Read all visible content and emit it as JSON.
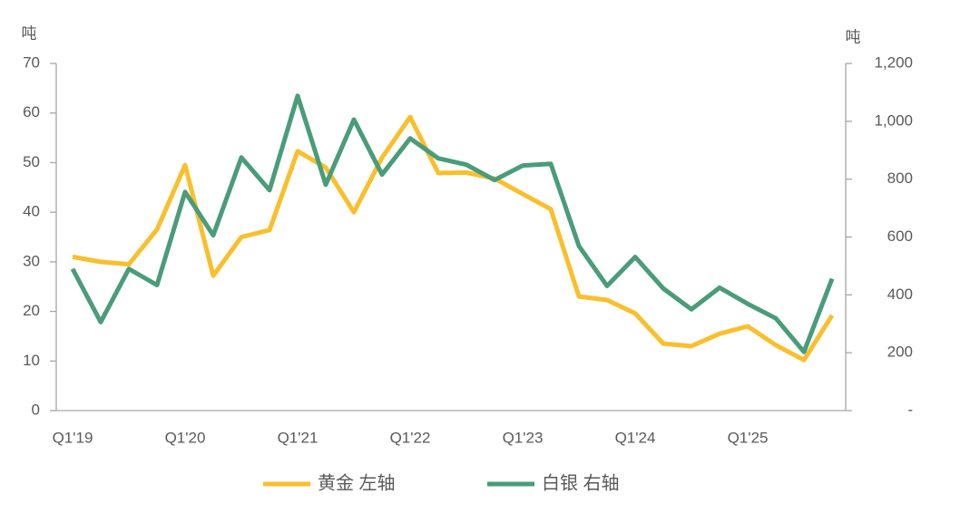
{
  "chart_data": {
    "type": "line",
    "y_label": "吨",
    "y2_label": "吨",
    "categories": [
      "Q1'19",
      null,
      null,
      null,
      "Q1'20",
      null,
      null,
      null,
      "Q1'21",
      null,
      null,
      null,
      "Q1'22",
      null,
      null,
      null,
      "Q1'23",
      null,
      null,
      null,
      "Q1'24",
      null,
      null,
      null,
      "Q1'25",
      null,
      null,
      null
    ],
    "series": [
      {
        "name": "黄金 左轴",
        "color": "#f9bf2c",
        "values": [
          31,
          30,
          29.5,
          36.5,
          49.5,
          27.2,
          35,
          36.4,
          52.3,
          49,
          40,
          51,
          59.2,
          47.9,
          48,
          46.8,
          43.7,
          40.6,
          23,
          22.3,
          19.6,
          13.5,
          13,
          15.5,
          17,
          13.2,
          10.2,
          19.2
        ]
      },
      {
        "name": "白银 右轴",
        "color": "#4a9c7a",
        "axis": "y2",
        "values": [
          490,
          306,
          490,
          434,
          756,
          606,
          875,
          762,
          1088,
          781,
          1006,
          816,
          941,
          872,
          850,
          797,
          847,
          853,
          569,
          431,
          531,
          422,
          350,
          425,
          369,
          319,
          203,
          456
        ]
      }
    ],
    "ylim": [
      0,
      70
    ],
    "yticks": [
      0,
      10,
      20,
      30,
      40,
      50,
      60,
      70
    ],
    "y2lim": [
      0,
      1200
    ],
    "y2ticks": [
      {
        "value": 0,
        "label": "-"
      },
      200,
      400,
      600,
      800,
      {
        "value": 1000,
        "label": "1,000"
      },
      {
        "value": 1200,
        "label": "1,200"
      }
    ],
    "legend": "bottom"
  }
}
